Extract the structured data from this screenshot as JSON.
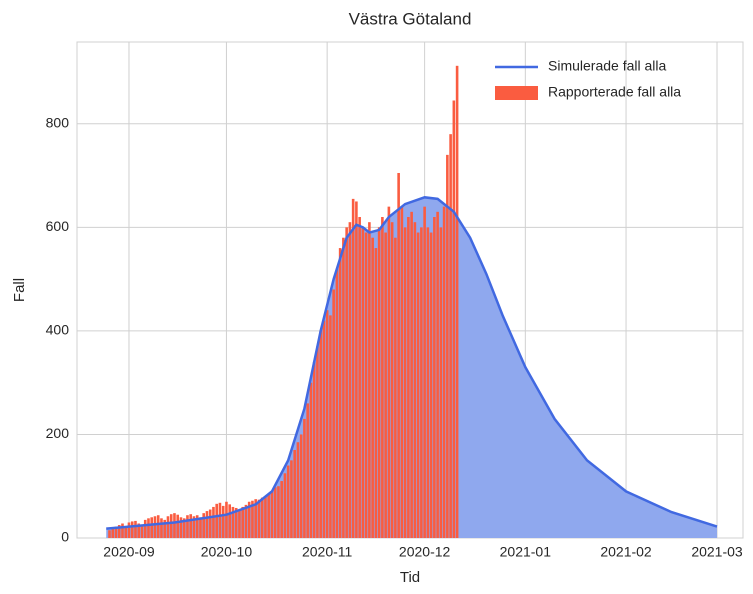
{
  "chart_data": {
    "type": "line-bar",
    "title": "Västra Götaland",
    "xlabel": "Tid",
    "ylabel": "Fall",
    "xlim": [
      "2020-08-16",
      "2021-03-09"
    ],
    "xticks": [
      {
        "value": "2020-09-01",
        "label": "2020-09"
      },
      {
        "value": "2020-10-01",
        "label": "2020-10"
      },
      {
        "value": "2020-11-01",
        "label": "2020-11"
      },
      {
        "value": "2020-12-01",
        "label": "2020-12"
      },
      {
        "value": "2021-01-01",
        "label": "2021-01"
      },
      {
        "value": "2021-02-01",
        "label": "2021-02"
      },
      {
        "value": "2021-03-01",
        "label": "2021-03"
      }
    ],
    "ylim": [
      0,
      958
    ],
    "yticks": [
      0,
      200,
      400,
      600,
      800
    ],
    "grid": true,
    "legend": "upper right",
    "series": [
      {
        "name": "Simulerade fall alla",
        "type": "line",
        "color": "#4169e1",
        "fill": "#8fa8ee",
        "x": [
          "2020-08-25",
          "2020-09-01",
          "2020-09-15",
          "2020-10-01",
          "2020-10-10",
          "2020-10-15",
          "2020-10-20",
          "2020-10-25",
          "2020-10-30",
          "2020-11-03",
          "2020-11-07",
          "2020-11-10",
          "2020-11-12",
          "2020-11-14",
          "2020-11-17",
          "2020-11-20",
          "2020-11-25",
          "2020-12-01",
          "2020-12-05",
          "2020-12-10",
          "2020-12-15",
          "2020-12-20",
          "2020-12-25",
          "2021-01-01",
          "2021-01-10",
          "2021-01-20",
          "2021-02-01",
          "2021-02-15",
          "2021-03-01"
        ],
        "values": [
          18,
          22,
          30,
          45,
          65,
          90,
          150,
          250,
          400,
          500,
          580,
          605,
          600,
          590,
          595,
          620,
          645,
          658,
          655,
          630,
          580,
          510,
          430,
          330,
          230,
          150,
          90,
          50,
          22
        ]
      },
      {
        "name": "Rapporterade fall alla",
        "type": "bar",
        "color": "#fa5c40",
        "x": [
          "2020-08-26",
          "2020-08-27",
          "2020-08-28",
          "2020-08-29",
          "2020-08-30",
          "2020-08-31",
          "2020-09-01",
          "2020-09-02",
          "2020-09-03",
          "2020-09-04",
          "2020-09-05",
          "2020-09-06",
          "2020-09-07",
          "2020-09-08",
          "2020-09-09",
          "2020-09-10",
          "2020-09-11",
          "2020-09-12",
          "2020-09-13",
          "2020-09-14",
          "2020-09-15",
          "2020-09-16",
          "2020-09-17",
          "2020-09-18",
          "2020-09-19",
          "2020-09-20",
          "2020-09-21",
          "2020-09-22",
          "2020-09-23",
          "2020-09-24",
          "2020-09-25",
          "2020-09-26",
          "2020-09-27",
          "2020-09-28",
          "2020-09-29",
          "2020-09-30",
          "2020-10-01",
          "2020-10-02",
          "2020-10-03",
          "2020-10-04",
          "2020-10-05",
          "2020-10-06",
          "2020-10-07",
          "2020-10-08",
          "2020-10-09",
          "2020-10-10",
          "2020-10-11",
          "2020-10-12",
          "2020-10-13",
          "2020-10-14",
          "2020-10-15",
          "2020-10-16",
          "2020-10-17",
          "2020-10-18",
          "2020-10-19",
          "2020-10-20",
          "2020-10-21",
          "2020-10-22",
          "2020-10-23",
          "2020-10-24",
          "2020-10-25",
          "2020-10-26",
          "2020-10-27",
          "2020-10-28",
          "2020-10-29",
          "2020-10-30",
          "2020-10-31",
          "2020-11-01",
          "2020-11-02",
          "2020-11-03",
          "2020-11-04",
          "2020-11-05",
          "2020-11-06",
          "2020-11-07",
          "2020-11-08",
          "2020-11-09",
          "2020-11-10",
          "2020-11-11",
          "2020-11-12",
          "2020-11-13",
          "2020-11-14",
          "2020-11-15",
          "2020-11-16",
          "2020-11-17",
          "2020-11-18",
          "2020-11-19",
          "2020-11-20",
          "2020-11-21",
          "2020-11-22",
          "2020-11-23",
          "2020-11-24",
          "2020-11-25",
          "2020-11-26",
          "2020-11-27",
          "2020-11-28",
          "2020-11-29",
          "2020-11-30",
          "2020-12-01",
          "2020-12-02",
          "2020-12-03",
          "2020-12-04",
          "2020-12-05",
          "2020-12-06",
          "2020-12-07",
          "2020-12-08",
          "2020-12-09",
          "2020-12-10",
          "2020-12-11"
        ],
        "values": [
          15,
          18,
          22,
          25,
          28,
          20,
          30,
          32,
          33,
          28,
          25,
          35,
          38,
          40,
          42,
          44,
          38,
          35,
          42,
          46,
          48,
          45,
          40,
          38,
          44,
          46,
          42,
          44,
          40,
          48,
          52,
          55,
          60,
          66,
          68,
          62,
          70,
          65,
          60,
          58,
          55,
          60,
          64,
          70,
          72,
          75,
          74,
          78,
          80,
          85,
          90,
          98,
          100,
          110,
          125,
          140,
          150,
          170,
          185,
          200,
          230,
          260,
          300,
          340,
          370,
          400,
          420,
          440,
          430,
          480,
          520,
          560,
          580,
          600,
          610,
          655,
          650,
          620,
          600,
          590,
          610,
          580,
          560,
          600,
          620,
          590,
          640,
          610,
          580,
          705,
          640,
          600,
          620,
          630,
          610,
          590,
          600,
          640,
          600,
          590,
          620,
          630,
          600,
          640,
          740,
          780,
          845,
          912
        ]
      }
    ]
  }
}
